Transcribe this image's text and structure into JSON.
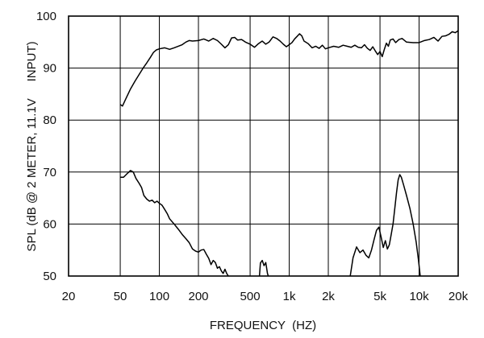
{
  "chart_data": {
    "type": "line",
    "title": "",
    "xlabel": "FREQUENCY  (HZ)",
    "ylabel": "SPL (dB @ 2 METER, 11.1V     INPUT)",
    "x_scale": "log",
    "xlim": [
      20,
      20000
    ],
    "ylim": [
      50,
      100
    ],
    "grid": true,
    "x_ticks": [
      {
        "value": 20,
        "label": "20"
      },
      {
        "value": 50,
        "label": "50"
      },
      {
        "value": 100,
        "label": "100"
      },
      {
        "value": 200,
        "label": "200"
      },
      {
        "value": 500,
        "label": "500"
      },
      {
        "value": 1000,
        "label": "1k"
      },
      {
        "value": 2000,
        "label": "2k"
      },
      {
        "value": 5000,
        "label": "5k"
      },
      {
        "value": 10000,
        "label": "10k"
      },
      {
        "value": 20000,
        "label": "20k"
      }
    ],
    "y_ticks": [
      {
        "value": 50,
        "label": "50"
      },
      {
        "value": 60,
        "label": "60"
      },
      {
        "value": 70,
        "label": "70"
      },
      {
        "value": 80,
        "label": "80"
      },
      {
        "value": 90,
        "label": "90"
      },
      {
        "value": 100,
        "label": "100"
      }
    ],
    "series": [
      {
        "stroke": "#000000",
        "points": [
          [
            50,
            83.0
          ],
          [
            52,
            82.7
          ],
          [
            55,
            84.0
          ],
          [
            60,
            86.0
          ],
          [
            65,
            87.5
          ],
          [
            70,
            88.8
          ],
          [
            75,
            90.0
          ],
          [
            80,
            91.0
          ],
          [
            85,
            92.0
          ],
          [
            90,
            93.0
          ],
          [
            95,
            93.5
          ],
          [
            100,
            93.7
          ],
          [
            110,
            93.9
          ],
          [
            120,
            93.6
          ],
          [
            130,
            93.9
          ],
          [
            140,
            94.2
          ],
          [
            150,
            94.5
          ],
          [
            160,
            95.0
          ],
          [
            170,
            95.3
          ],
          [
            180,
            95.2
          ],
          [
            200,
            95.3
          ],
          [
            220,
            95.6
          ],
          [
            240,
            95.2
          ],
          [
            260,
            95.7
          ],
          [
            280,
            95.3
          ],
          [
            300,
            94.6
          ],
          [
            320,
            93.9
          ],
          [
            340,
            94.5
          ],
          [
            360,
            95.8
          ],
          [
            380,
            95.9
          ],
          [
            400,
            95.4
          ],
          [
            430,
            95.5
          ],
          [
            460,
            95.0
          ],
          [
            500,
            94.6
          ],
          [
            540,
            94.0
          ],
          [
            580,
            94.7
          ],
          [
            620,
            95.2
          ],
          [
            660,
            94.6
          ],
          [
            700,
            95.0
          ],
          [
            750,
            96.0
          ],
          [
            800,
            95.7
          ],
          [
            850,
            95.2
          ],
          [
            900,
            94.6
          ],
          [
            950,
            94.1
          ],
          [
            1000,
            94.5
          ],
          [
            1050,
            94.9
          ],
          [
            1100,
            95.6
          ],
          [
            1150,
            96.1
          ],
          [
            1200,
            96.6
          ],
          [
            1250,
            96.2
          ],
          [
            1300,
            95.2
          ],
          [
            1400,
            94.7
          ],
          [
            1500,
            93.9
          ],
          [
            1600,
            94.2
          ],
          [
            1700,
            93.8
          ],
          [
            1800,
            94.4
          ],
          [
            1900,
            93.7
          ],
          [
            2000,
            93.9
          ],
          [
            2200,
            94.2
          ],
          [
            2400,
            94.0
          ],
          [
            2600,
            94.4
          ],
          [
            2800,
            94.2
          ],
          [
            3000,
            94.0
          ],
          [
            3200,
            94.4
          ],
          [
            3400,
            94.0
          ],
          [
            3600,
            93.9
          ],
          [
            3800,
            94.5
          ],
          [
            4000,
            93.8
          ],
          [
            4200,
            93.4
          ],
          [
            4400,
            94.1
          ],
          [
            4600,
            93.3
          ],
          [
            4800,
            92.6
          ],
          [
            5000,
            93.2
          ],
          [
            5200,
            92.2
          ],
          [
            5400,
            93.6
          ],
          [
            5600,
            94.8
          ],
          [
            5800,
            94.2
          ],
          [
            6000,
            95.4
          ],
          [
            6300,
            95.6
          ],
          [
            6600,
            94.9
          ],
          [
            7000,
            95.5
          ],
          [
            7400,
            95.7
          ],
          [
            8000,
            95.0
          ],
          [
            9000,
            94.9
          ],
          [
            10000,
            94.9
          ],
          [
            11000,
            95.3
          ],
          [
            12000,
            95.5
          ],
          [
            13000,
            95.9
          ],
          [
            14000,
            95.2
          ],
          [
            15000,
            96.1
          ],
          [
            16000,
            96.2
          ],
          [
            17000,
            96.5
          ],
          [
            18000,
            97.0
          ],
          [
            19000,
            96.8
          ],
          [
            20000,
            97.2
          ]
        ]
      },
      {
        "stroke": "#000000",
        "points": [
          [
            50,
            69.0
          ],
          [
            53,
            69.0
          ],
          [
            56,
            69.6
          ],
          [
            60,
            70.3
          ],
          [
            63,
            70.0
          ],
          [
            66,
            68.8
          ],
          [
            70,
            67.8
          ],
          [
            73,
            67.0
          ],
          [
            76,
            65.5
          ],
          [
            80,
            64.8
          ],
          [
            84,
            64.4
          ],
          [
            88,
            64.6
          ],
          [
            92,
            64.1
          ],
          [
            96,
            64.4
          ],
          [
            100,
            64.0
          ],
          [
            105,
            63.6
          ],
          [
            110,
            62.8
          ],
          [
            115,
            62.0
          ],
          [
            120,
            61.0
          ],
          [
            130,
            60.0
          ],
          [
            140,
            59.0
          ],
          [
            150,
            58.0
          ],
          [
            160,
            57.2
          ],
          [
            170,
            56.4
          ],
          [
            180,
            55.2
          ],
          [
            190,
            54.8
          ],
          [
            200,
            54.6
          ],
          [
            210,
            55.0
          ],
          [
            220,
            55.1
          ],
          [
            230,
            54.2
          ],
          [
            240,
            53.4
          ],
          [
            250,
            52.2
          ],
          [
            260,
            53.0
          ],
          [
            270,
            52.6
          ],
          [
            280,
            51.5
          ],
          [
            290,
            51.8
          ],
          [
            300,
            51.0
          ],
          [
            310,
            50.5
          ],
          [
            320,
            51.3
          ],
          [
            330,
            50.5
          ],
          [
            340,
            50.0
          ]
        ]
      },
      {
        "stroke": "#000000",
        "points": [
          [
            590,
            50.0
          ],
          [
            600,
            52.5
          ],
          [
            620,
            53.0
          ],
          [
            640,
            52.0
          ],
          [
            660,
            52.6
          ],
          [
            680,
            50.5
          ],
          [
            690,
            50.0
          ]
        ]
      },
      {
        "stroke": "#000000",
        "points": [
          [
            2950,
            50.0
          ],
          [
            3100,
            53.5
          ],
          [
            3300,
            55.6
          ],
          [
            3500,
            54.5
          ],
          [
            3700,
            55.0
          ],
          [
            3900,
            54.0
          ],
          [
            4100,
            53.5
          ],
          [
            4300,
            55.0
          ],
          [
            4500,
            57.0
          ],
          [
            4700,
            58.8
          ],
          [
            4900,
            59.4
          ],
          [
            5100,
            57.5
          ],
          [
            5300,
            55.5
          ],
          [
            5500,
            56.8
          ],
          [
            5700,
            55.2
          ],
          [
            5900,
            56.0
          ],
          [
            6100,
            58.0
          ],
          [
            6300,
            60.0
          ],
          [
            6500,
            63.0
          ],
          [
            6700,
            66.0
          ],
          [
            6900,
            68.5
          ],
          [
            7100,
            69.5
          ],
          [
            7300,
            69.0
          ],
          [
            7600,
            67.5
          ],
          [
            8000,
            65.5
          ],
          [
            8500,
            63.0
          ],
          [
            9000,
            60.0
          ],
          [
            9500,
            56.5
          ],
          [
            9900,
            53.0
          ],
          [
            10200,
            50.0
          ]
        ]
      }
    ]
  }
}
